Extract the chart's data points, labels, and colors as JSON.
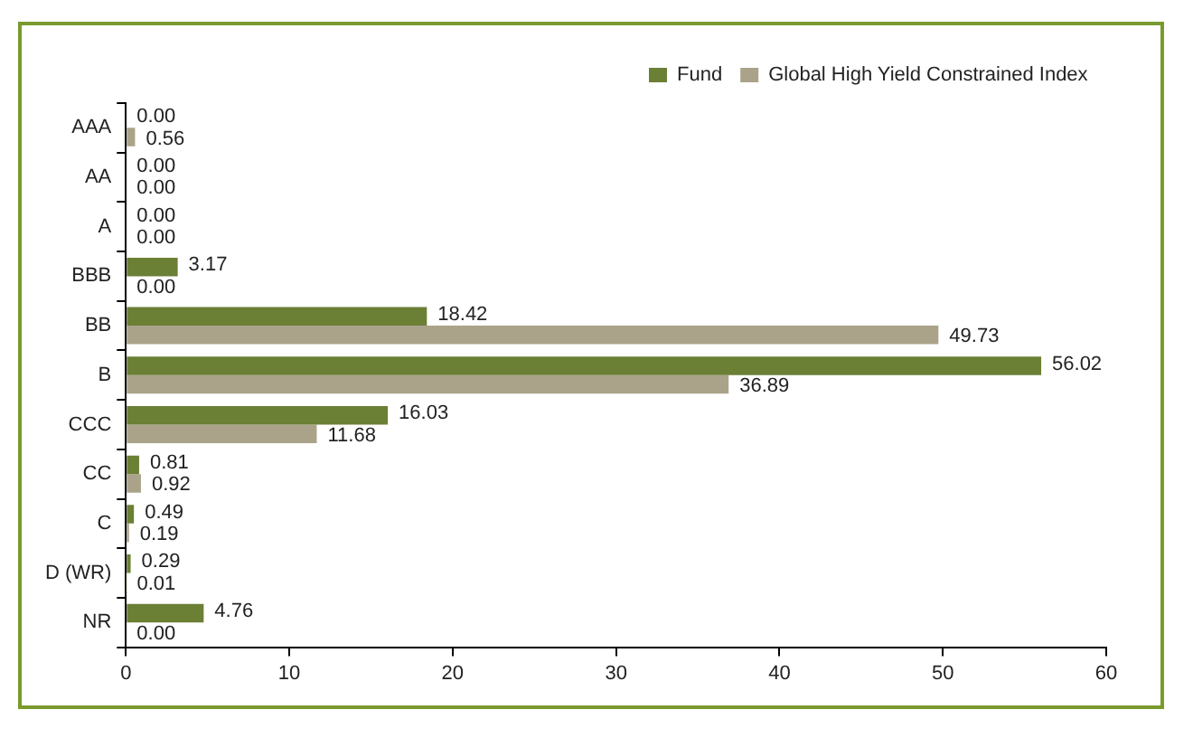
{
  "chart_data": {
    "type": "bar",
    "orientation": "horizontal",
    "categories": [
      "AAA",
      "AA",
      "A",
      "BBB",
      "BB",
      "B",
      "CCC",
      "CC",
      "C",
      "D (WR)",
      "NR"
    ],
    "series": [
      {
        "name": "Fund",
        "color": "#6b7f35",
        "values": [
          0,
          0,
          0,
          3.17,
          18.42,
          56.02,
          16.03,
          0.81,
          0.49,
          0.29,
          4.76
        ],
        "value_labels": [
          "0.00",
          "0.00",
          "0.00",
          "3.17",
          "18.42",
          "56.02",
          "16.03",
          "0.81",
          "0.49",
          "0.29",
          "4.76"
        ]
      },
      {
        "name": "Global High Yield Constrained Index",
        "color": "#aaa38a",
        "values": [
          0.56,
          0,
          0,
          0,
          49.73,
          36.89,
          11.68,
          0.92,
          0.19,
          0.01,
          0
        ],
        "value_labels": [
          "0.56",
          "0.00",
          "0.00",
          "0.00",
          "49.73",
          "36.89",
          "11.68",
          "0.92",
          "0.19",
          "0.01",
          "0.00"
        ]
      }
    ],
    "xlim": [
      0,
      60
    ],
    "xticks": [
      0,
      10,
      20,
      30,
      40,
      50,
      60
    ],
    "grid": false,
    "legend": "top right"
  }
}
